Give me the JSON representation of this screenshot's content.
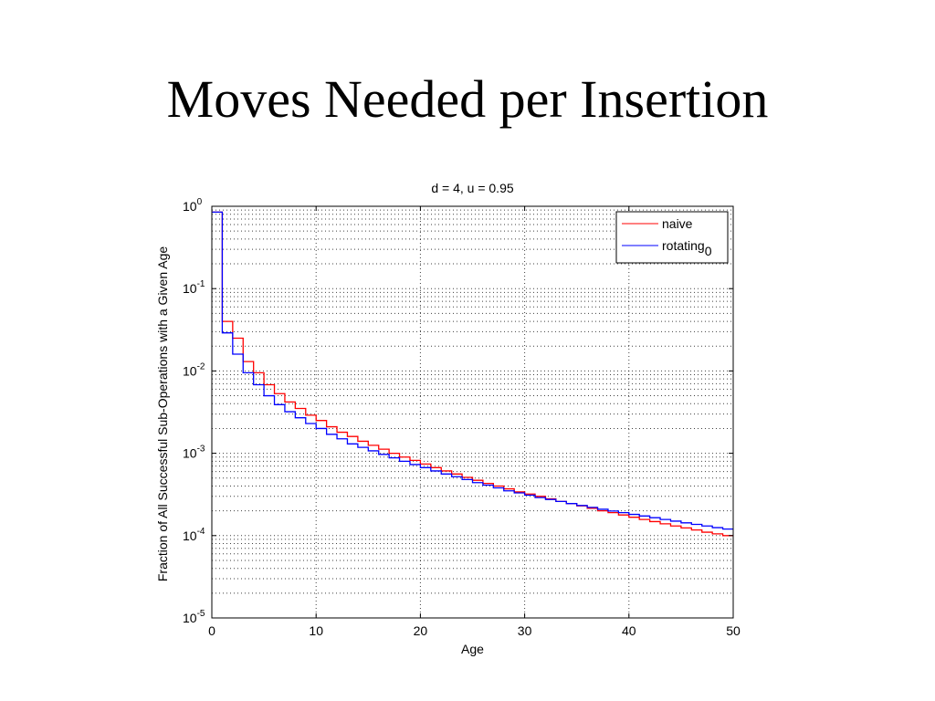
{
  "slide": {
    "title": "Moves Needed per Insertion"
  },
  "chart_data": {
    "type": "line",
    "style": "stairs",
    "title": "d = 4, u = 0.95",
    "xlabel": "Age",
    "ylabel": "Fraction of All Successful Sub-Operations with a Given Age",
    "xlim": [
      0,
      50
    ],
    "ylim": [
      1e-05,
      1
    ],
    "yscale": "log",
    "grid": "major and minor, dotted",
    "xticks": [
      0,
      10,
      20,
      30,
      40,
      50
    ],
    "yticks": [
      {
        "base": "10",
        "exp": "0",
        "value": 1
      },
      {
        "base": "10",
        "exp": "-1",
        "value": 0.1
      },
      {
        "base": "10",
        "exp": "-2",
        "value": 0.01
      },
      {
        "base": "10",
        "exp": "-3",
        "value": 0.001
      },
      {
        "base": "10",
        "exp": "-4",
        "value": 0.0001
      },
      {
        "base": "10",
        "exp": "-5",
        "value": 1e-05
      }
    ],
    "legend_position": "top-right",
    "x": [
      0,
      1,
      2,
      3,
      4,
      5,
      6,
      7,
      8,
      9,
      10,
      11,
      12,
      13,
      14,
      15,
      16,
      17,
      18,
      19,
      20,
      21,
      22,
      23,
      24,
      25,
      26,
      27,
      28,
      29,
      30,
      31,
      32,
      33,
      34,
      35,
      36,
      37,
      38,
      39,
      40,
      41,
      42,
      43,
      44,
      45,
      46,
      47,
      48,
      49
    ],
    "series": [
      {
        "name": "naive",
        "sub": "",
        "color": "#ff0000",
        "values": [
          0.85,
          0.04,
          0.025,
          0.013,
          0.0095,
          0.0068,
          0.0053,
          0.0042,
          0.0035,
          0.0029,
          0.0025,
          0.0021,
          0.0018,
          0.0016,
          0.0014,
          0.00125,
          0.00112,
          0.001,
          0.0009,
          0.00082,
          0.00074,
          0.00067,
          0.00061,
          0.00056,
          0.00051,
          0.00047,
          0.00043,
          0.0004,
          0.00037,
          0.00034,
          0.00032,
          0.0003,
          0.00028,
          0.00026,
          0.000245,
          0.00023,
          0.000215,
          0.0002,
          0.00019,
          0.000178,
          0.000167,
          0.000157,
          0.000148,
          0.000139,
          0.000131,
          0.000124,
          0.000117,
          0.00011,
          0.000105,
          0.0001
        ]
      },
      {
        "name": "rotating",
        "sub": "0",
        "color": "#0000ff",
        "values": [
          0.85,
          0.029,
          0.016,
          0.0095,
          0.0068,
          0.005,
          0.0039,
          0.0032,
          0.0027,
          0.0023,
          0.002,
          0.0017,
          0.0015,
          0.0013,
          0.00118,
          0.00107,
          0.00097,
          0.00088,
          0.0008,
          0.00073,
          0.00067,
          0.00061,
          0.00056,
          0.00052,
          0.00048,
          0.00044,
          0.00041,
          0.00038,
          0.00035,
          0.00033,
          0.00031,
          0.00029,
          0.000275,
          0.00026,
          0.000245,
          0.000232,
          0.00022,
          0.000209,
          0.000199,
          0.00019,
          0.000181,
          0.000173,
          0.000165,
          0.000157,
          0.00015,
          0.000143,
          0.000137,
          0.000131,
          0.000125,
          0.00012
        ]
      }
    ]
  }
}
